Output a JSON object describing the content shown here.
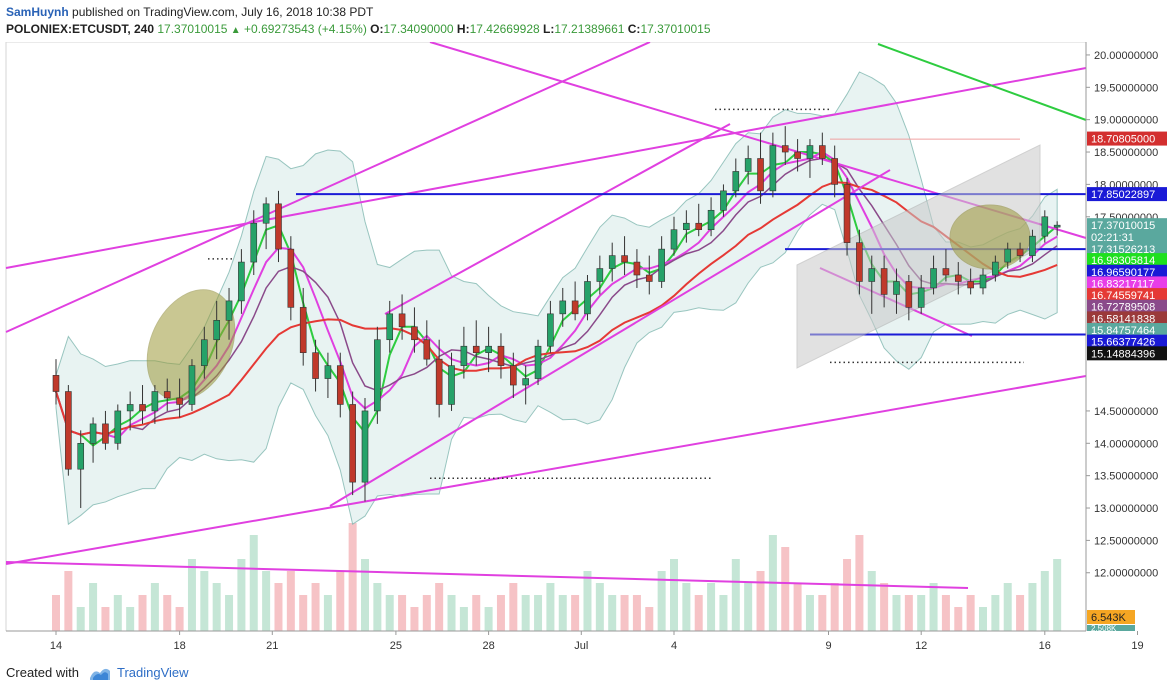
{
  "header": {
    "author": "SamHuynh",
    "published_text": "published on TradingView.com, July 16, 2018 10:38 PDT",
    "symbol": "POLONIEX:ETCUSDT, 240",
    "last": "17.37010015",
    "change": "+0.69273543 (+4.15%)",
    "o_label": "O:",
    "o": "17.34090000",
    "h_label": "H:",
    "h": "17.42669928",
    "l_label": "L:",
    "l": "17.21389661",
    "c_label": "C:",
    "c": "17.37010015"
  },
  "footer": {
    "created_with": "Created with",
    "brand": "TradingView"
  },
  "chart_data": {
    "type": "candlestick",
    "y_range": [
      11.1,
      20.2
    ],
    "y_ticks": [
      {
        "label": "20.00000000",
        "value": 20.0
      },
      {
        "label": "19.50000000",
        "value": 19.5
      },
      {
        "label": "19.00000000",
        "value": 19.0
      },
      {
        "label": "18.50000000",
        "value": 18.5
      },
      {
        "label": "18.00000000",
        "value": 18.0
      },
      {
        "label": "17.50000000",
        "value": 17.5
      },
      {
        "label": "14.50000000",
        "value": 14.5
      },
      {
        "label": "14.00000000",
        "value": 14.0
      },
      {
        "label": "13.50000000",
        "value": 13.5
      },
      {
        "label": "13.00000000",
        "value": 13.0
      },
      {
        "label": "12.50000000",
        "value": 12.5
      },
      {
        "label": "12.00000000",
        "value": 12.0
      }
    ],
    "x_ticks": [
      {
        "label": "14",
        "day": 0
      },
      {
        "label": "18",
        "day": 4
      },
      {
        "label": "21",
        "day": 7
      },
      {
        "label": "25",
        "day": 11
      },
      {
        "label": "28",
        "day": 14
      },
      {
        "label": "Jul",
        "day": 17
      },
      {
        "label": "4",
        "day": 20
      },
      {
        "label": "9",
        "day": 25
      },
      {
        "label": "12",
        "day": 28
      },
      {
        "label": "16",
        "day": 32
      },
      {
        "label": "19",
        "day": 35
      }
    ],
    "price_badges": [
      {
        "label": "18.70805000",
        "value": 18.708,
        "color": "#d32f2f"
      },
      {
        "label": "17.85022897",
        "value": 17.85,
        "color": "#1a1ad6"
      },
      {
        "label": "17.37010015",
        "value": 17.37,
        "color": "#5aa89e"
      },
      {
        "label": "02:21:31",
        "value": 17.19,
        "color": "#5aa89e"
      },
      {
        "label": "17.31526213",
        "value": 17.0,
        "color": "#5aa89e"
      },
      {
        "label": "16.98305814",
        "value": 16.83,
        "color": "#1ee01e"
      },
      {
        "label": "16.96590177",
        "value": 16.65,
        "color": "#1a1ad6"
      },
      {
        "label": "16.83217117",
        "value": 16.47,
        "color": "#e83ee8"
      },
      {
        "label": "16.74559741",
        "value": 16.29,
        "color": "#e53935"
      },
      {
        "label": "16.72789508",
        "value": 16.11,
        "color": "#8a4a8a"
      },
      {
        "label": "16.58141838",
        "value": 15.93,
        "color": "#9b3a3a"
      },
      {
        "label": "15.84757464",
        "value": 15.75,
        "color": "#5aa89e"
      },
      {
        "label": "15.66377426",
        "value": 15.57,
        "color": "#1a1ad6"
      },
      {
        "label": "15.14884396",
        "value": 15.39,
        "color": "#111111"
      }
    ],
    "volume_badges": [
      {
        "label": "6.543K",
        "color": "#f5a623"
      },
      {
        "label": "2.508K",
        "color": "#5aa89e"
      }
    ],
    "candles": [
      {
        "d": 0.0,
        "o": 15.05,
        "h": 15.3,
        "l": 14.6,
        "c": 14.8
      },
      {
        "d": 0.4,
        "o": 14.8,
        "h": 14.9,
        "l": 13.5,
        "c": 13.6
      },
      {
        "d": 0.8,
        "o": 13.6,
        "h": 14.2,
        "l": 13.0,
        "c": 14.0
      },
      {
        "d": 1.2,
        "o": 14.0,
        "h": 14.4,
        "l": 13.7,
        "c": 14.3
      },
      {
        "d": 1.6,
        "o": 14.3,
        "h": 14.5,
        "l": 13.9,
        "c": 14.0
      },
      {
        "d": 2.0,
        "o": 14.0,
        "h": 14.6,
        "l": 13.9,
        "c": 14.5
      },
      {
        "d": 2.4,
        "o": 14.5,
        "h": 14.8,
        "l": 14.2,
        "c": 14.6
      },
      {
        "d": 2.8,
        "o": 14.6,
        "h": 14.9,
        "l": 14.3,
        "c": 14.5
      },
      {
        "d": 3.2,
        "o": 14.5,
        "h": 14.9,
        "l": 14.3,
        "c": 14.8
      },
      {
        "d": 3.6,
        "o": 14.8,
        "h": 15.0,
        "l": 14.5,
        "c": 14.7
      },
      {
        "d": 4.0,
        "o": 14.7,
        "h": 15.0,
        "l": 14.4,
        "c": 14.6
      },
      {
        "d": 4.4,
        "o": 14.6,
        "h": 15.3,
        "l": 14.5,
        "c": 15.2
      },
      {
        "d": 4.8,
        "o": 15.2,
        "h": 15.8,
        "l": 15.0,
        "c": 15.6
      },
      {
        "d": 5.2,
        "o": 15.6,
        "h": 16.2,
        "l": 15.3,
        "c": 15.9
      },
      {
        "d": 5.6,
        "o": 15.9,
        "h": 16.4,
        "l": 15.6,
        "c": 16.2
      },
      {
        "d": 6.0,
        "o": 16.2,
        "h": 17.0,
        "l": 16.0,
        "c": 16.8
      },
      {
        "d": 6.4,
        "o": 16.8,
        "h": 17.6,
        "l": 16.6,
        "c": 17.4
      },
      {
        "d": 6.8,
        "o": 17.4,
        "h": 17.8,
        "l": 17.0,
        "c": 17.7
      },
      {
        "d": 7.2,
        "o": 17.7,
        "h": 17.9,
        "l": 16.8,
        "c": 17.0
      },
      {
        "d": 7.6,
        "o": 17.0,
        "h": 17.2,
        "l": 15.9,
        "c": 16.1
      },
      {
        "d": 8.0,
        "o": 16.1,
        "h": 16.4,
        "l": 15.2,
        "c": 15.4
      },
      {
        "d": 8.4,
        "o": 15.4,
        "h": 15.6,
        "l": 14.8,
        "c": 15.0
      },
      {
        "d": 8.8,
        "o": 15.0,
        "h": 15.4,
        "l": 14.7,
        "c": 15.2
      },
      {
        "d": 9.2,
        "o": 15.2,
        "h": 15.4,
        "l": 14.4,
        "c": 14.6
      },
      {
        "d": 9.6,
        "o": 14.6,
        "h": 14.8,
        "l": 13.2,
        "c": 13.4
      },
      {
        "d": 10.0,
        "o": 13.4,
        "h": 14.7,
        "l": 13.1,
        "c": 14.5
      },
      {
        "d": 10.4,
        "o": 14.5,
        "h": 15.8,
        "l": 14.3,
        "c": 15.6
      },
      {
        "d": 10.8,
        "o": 15.6,
        "h": 16.2,
        "l": 15.4,
        "c": 16.0
      },
      {
        "d": 11.2,
        "o": 16.0,
        "h": 16.3,
        "l": 15.6,
        "c": 15.8
      },
      {
        "d": 11.6,
        "o": 15.8,
        "h": 16.1,
        "l": 15.4,
        "c": 15.6
      },
      {
        "d": 12.0,
        "o": 15.6,
        "h": 15.9,
        "l": 15.2,
        "c": 15.3
      },
      {
        "d": 12.4,
        "o": 15.3,
        "h": 15.6,
        "l": 14.4,
        "c": 14.6
      },
      {
        "d": 12.8,
        "o": 14.6,
        "h": 15.4,
        "l": 14.5,
        "c": 15.2
      },
      {
        "d": 13.2,
        "o": 15.2,
        "h": 15.8,
        "l": 15.0,
        "c": 15.5
      },
      {
        "d": 13.6,
        "o": 15.5,
        "h": 15.9,
        "l": 15.2,
        "c": 15.4
      },
      {
        "d": 14.0,
        "o": 15.4,
        "h": 15.8,
        "l": 15.1,
        "c": 15.5
      },
      {
        "d": 14.4,
        "o": 15.5,
        "h": 15.7,
        "l": 15.0,
        "c": 15.2
      },
      {
        "d": 14.8,
        "o": 15.2,
        "h": 15.4,
        "l": 14.7,
        "c": 14.9
      },
      {
        "d": 15.2,
        "o": 14.9,
        "h": 15.2,
        "l": 14.6,
        "c": 15.0
      },
      {
        "d": 15.6,
        "o": 15.0,
        "h": 15.6,
        "l": 14.9,
        "c": 15.5
      },
      {
        "d": 16.0,
        "o": 15.5,
        "h": 16.2,
        "l": 15.4,
        "c": 16.0
      },
      {
        "d": 16.4,
        "o": 16.0,
        "h": 16.4,
        "l": 15.8,
        "c": 16.2
      },
      {
        "d": 16.8,
        "o": 16.2,
        "h": 16.5,
        "l": 15.9,
        "c": 16.0
      },
      {
        "d": 17.2,
        "o": 16.0,
        "h": 16.6,
        "l": 15.9,
        "c": 16.5
      },
      {
        "d": 17.6,
        "o": 16.5,
        "h": 16.9,
        "l": 16.3,
        "c": 16.7
      },
      {
        "d": 18.0,
        "o": 16.7,
        "h": 17.1,
        "l": 16.5,
        "c": 16.9
      },
      {
        "d": 18.4,
        "o": 16.9,
        "h": 17.2,
        "l": 16.6,
        "c": 16.8
      },
      {
        "d": 18.8,
        "o": 16.8,
        "h": 17.0,
        "l": 16.4,
        "c": 16.6
      },
      {
        "d": 19.2,
        "o": 16.6,
        "h": 16.9,
        "l": 16.3,
        "c": 16.5
      },
      {
        "d": 19.6,
        "o": 16.5,
        "h": 17.2,
        "l": 16.4,
        "c": 17.0
      },
      {
        "d": 20.0,
        "o": 17.0,
        "h": 17.5,
        "l": 16.9,
        "c": 17.3
      },
      {
        "d": 20.4,
        "o": 17.3,
        "h": 17.6,
        "l": 17.1,
        "c": 17.4
      },
      {
        "d": 20.8,
        "o": 17.4,
        "h": 17.7,
        "l": 17.2,
        "c": 17.3
      },
      {
        "d": 21.2,
        "o": 17.3,
        "h": 17.8,
        "l": 17.2,
        "c": 17.6
      },
      {
        "d": 21.6,
        "o": 17.6,
        "h": 18.0,
        "l": 17.5,
        "c": 17.9
      },
      {
        "d": 22.0,
        "o": 17.9,
        "h": 18.4,
        "l": 17.8,
        "c": 18.2
      },
      {
        "d": 22.4,
        "o": 18.2,
        "h": 18.6,
        "l": 18.0,
        "c": 18.4
      },
      {
        "d": 22.8,
        "o": 18.4,
        "h": 18.8,
        "l": 17.7,
        "c": 17.9
      },
      {
        "d": 23.2,
        "o": 17.9,
        "h": 18.8,
        "l": 17.8,
        "c": 18.6
      },
      {
        "d": 23.6,
        "o": 18.6,
        "h": 18.9,
        "l": 18.3,
        "c": 18.5
      },
      {
        "d": 24.0,
        "o": 18.5,
        "h": 18.7,
        "l": 18.2,
        "c": 18.4
      },
      {
        "d": 24.4,
        "o": 18.4,
        "h": 18.7,
        "l": 18.1,
        "c": 18.6
      },
      {
        "d": 24.8,
        "o": 18.6,
        "h": 18.8,
        "l": 18.3,
        "c": 18.4
      },
      {
        "d": 25.2,
        "o": 18.4,
        "h": 18.6,
        "l": 17.8,
        "c": 18.0
      },
      {
        "d": 25.6,
        "o": 18.0,
        "h": 18.1,
        "l": 16.9,
        "c": 17.1
      },
      {
        "d": 26.0,
        "o": 17.1,
        "h": 17.3,
        "l": 16.3,
        "c": 16.5
      },
      {
        "d": 26.4,
        "o": 16.5,
        "h": 16.9,
        "l": 16.0,
        "c": 16.7
      },
      {
        "d": 26.8,
        "o": 16.7,
        "h": 16.9,
        "l": 16.1,
        "c": 16.3
      },
      {
        "d": 27.2,
        "o": 16.3,
        "h": 16.7,
        "l": 16.0,
        "c": 16.5
      },
      {
        "d": 27.6,
        "o": 16.5,
        "h": 16.6,
        "l": 15.9,
        "c": 16.1
      },
      {
        "d": 28.0,
        "o": 16.1,
        "h": 16.6,
        "l": 16.0,
        "c": 16.4
      },
      {
        "d": 28.4,
        "o": 16.4,
        "h": 16.9,
        "l": 16.3,
        "c": 16.7
      },
      {
        "d": 28.8,
        "o": 16.7,
        "h": 17.0,
        "l": 16.5,
        "c": 16.6
      },
      {
        "d": 29.2,
        "o": 16.6,
        "h": 16.8,
        "l": 16.3,
        "c": 16.5
      },
      {
        "d": 29.6,
        "o": 16.5,
        "h": 16.7,
        "l": 16.3,
        "c": 16.4
      },
      {
        "d": 30.0,
        "o": 16.4,
        "h": 16.7,
        "l": 16.3,
        "c": 16.6
      },
      {
        "d": 30.4,
        "o": 16.6,
        "h": 16.9,
        "l": 16.5,
        "c": 16.8
      },
      {
        "d": 30.8,
        "o": 16.8,
        "h": 17.1,
        "l": 16.7,
        "c": 17.0
      },
      {
        "d": 31.2,
        "o": 17.0,
        "h": 17.1,
        "l": 16.8,
        "c": 16.9
      },
      {
        "d": 31.6,
        "o": 16.9,
        "h": 17.3,
        "l": 16.8,
        "c": 17.2
      },
      {
        "d": 32.0,
        "o": 17.2,
        "h": 17.6,
        "l": 17.1,
        "c": 17.5
      },
      {
        "d": 32.4,
        "o": 17.34,
        "h": 17.43,
        "l": 17.21,
        "c": 17.37
      }
    ],
    "volumes": [
      3,
      5,
      2,
      4,
      2,
      3,
      2,
      3,
      4,
      3,
      2,
      6,
      5,
      4,
      3,
      6,
      8,
      5,
      4,
      5,
      3,
      4,
      3,
      5,
      9,
      6,
      4,
      3,
      3,
      2,
      3,
      4,
      3,
      2,
      3,
      2,
      3,
      4,
      3,
      3,
      4,
      3,
      3,
      5,
      4,
      3,
      3,
      3,
      2,
      5,
      6,
      4,
      3,
      4,
      3,
      6,
      4,
      5,
      8,
      7,
      4,
      3,
      3,
      4,
      6,
      8,
      5,
      4,
      3,
      3,
      3,
      4,
      3,
      2,
      3,
      2,
      3,
      4,
      3,
      4,
      5,
      6
    ]
  }
}
